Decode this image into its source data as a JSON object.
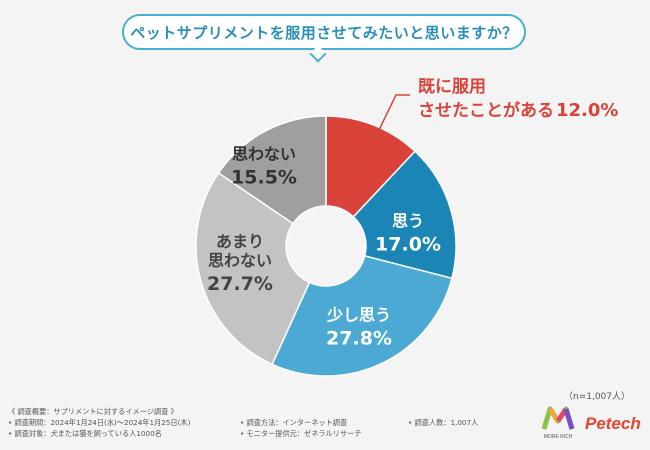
{
  "title": "ペットサプリメントを服用させてみたいと思いますか？",
  "sample_size": "（n=1,007人）",
  "chart_data": {
    "type": "pie",
    "style": "donut",
    "start_angle_deg": 0,
    "direction": "clockwise",
    "slices": [
      {
        "key": "already",
        "label_lines": [
          "既に服用",
          "させたことがある"
        ],
        "value": 12.0,
        "value_text": "12.0%",
        "color": "#d9433a",
        "label_color": "#d9433a",
        "label_position": "outside"
      },
      {
        "key": "think",
        "label_lines": [
          "思う"
        ],
        "value": 17.0,
        "value_text": "17.0%",
        "color": "#1b86b6",
        "label_color": "#ffffff",
        "label_position": "inside"
      },
      {
        "key": "somewhat",
        "label_lines": [
          "少し思う"
        ],
        "value": 27.8,
        "value_text": "27.8%",
        "color": "#4ba9d3",
        "label_color": "#ffffff",
        "label_position": "inside"
      },
      {
        "key": "not_much",
        "label_lines": [
          "あまり",
          "思わない"
        ],
        "value": 27.7,
        "value_text": "27.7%",
        "color": "#c3c3c3",
        "label_color": "#444444",
        "label_position": "inside"
      },
      {
        "key": "not",
        "label_lines": [
          "思わない"
        ],
        "value": 15.5,
        "value_text": "15.5%",
        "color": "#9f9f9f",
        "label_color": "#333333",
        "label_position": "inside"
      }
    ]
  },
  "footer": {
    "heading": "《 調査概要：サプリメントに対するイメージ調査 》",
    "period": "• 調査期間：2024年1月24日(水)～2024年1月25日(木)",
    "target": "• 調査対象：犬または猫を飼っている人1000名",
    "method": "• 調査方法：インターネット調査",
    "provider": "• モニター提供元：ゼネラルリサーチ",
    "count": "• 調査人数：1,007人"
  },
  "logos": {
    "more_rich_text": "MORE RICH",
    "petech_text": "Petech"
  }
}
